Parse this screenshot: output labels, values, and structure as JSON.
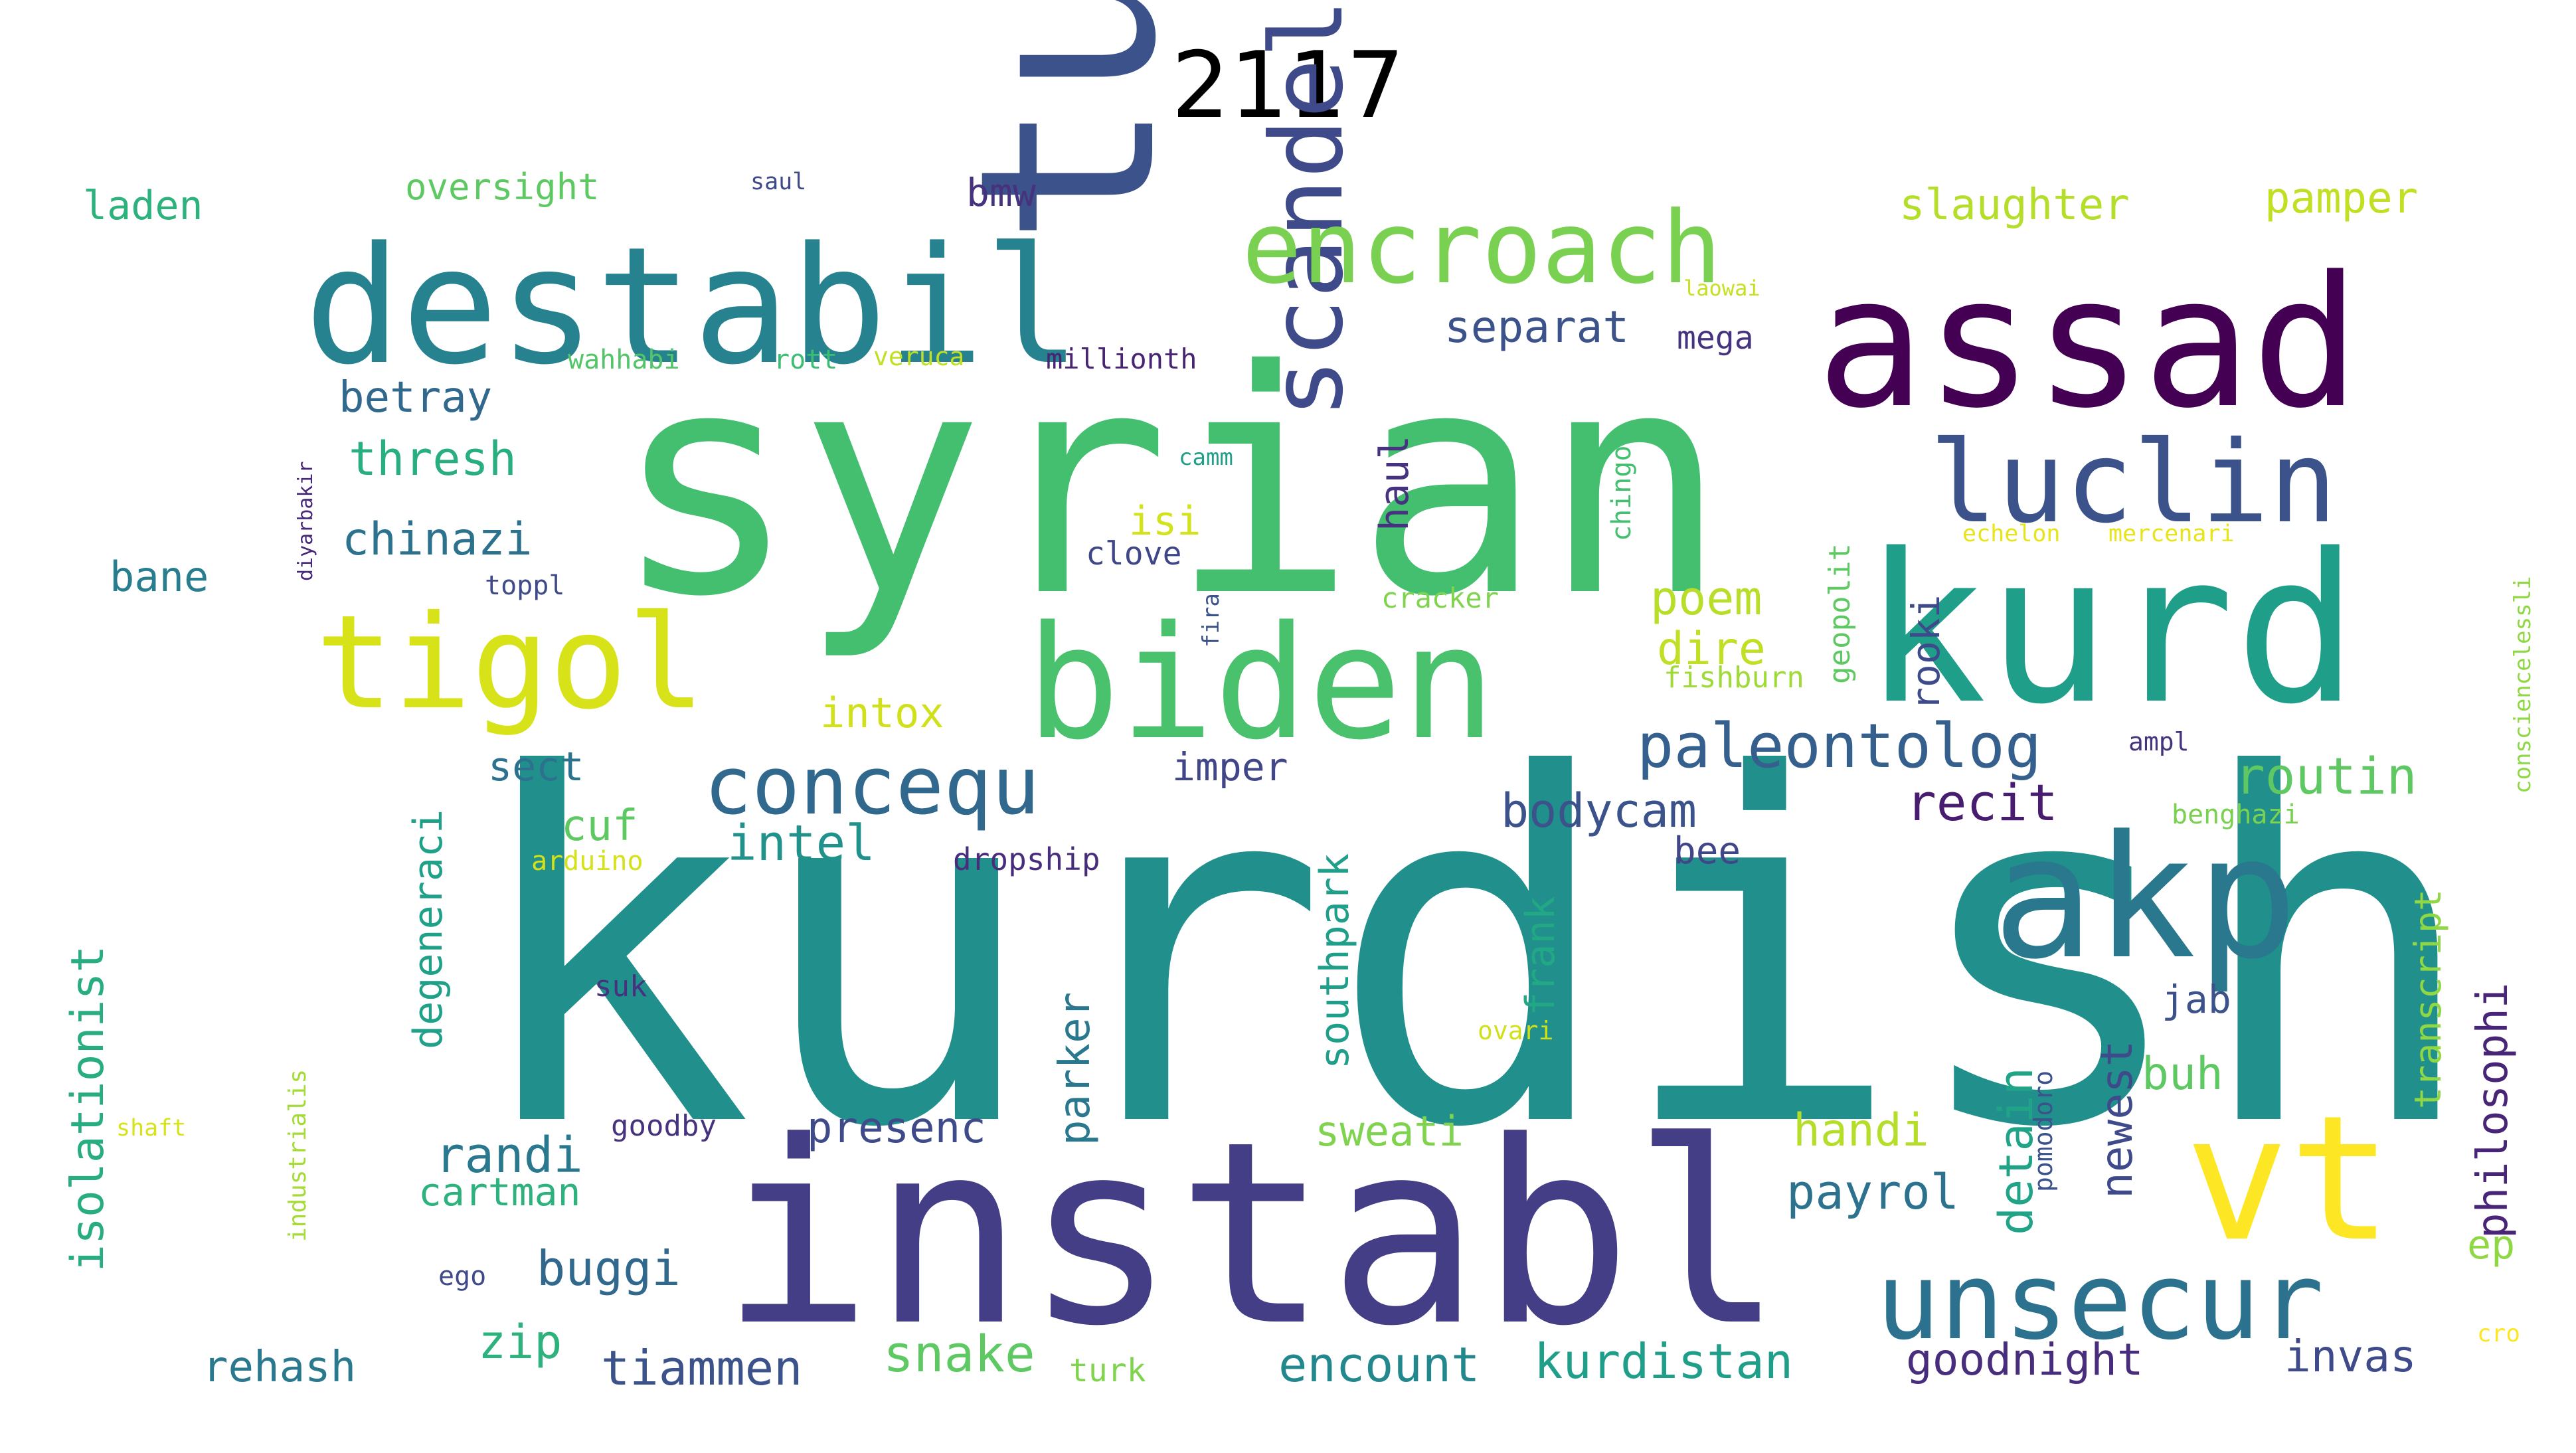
{
  "title": "2117",
  "words": [
    {
      "text": "kurdish",
      "color": "#21908c"
    },
    {
      "text": "syrian",
      "color": "#44bf70"
    },
    {
      "text": "instabl",
      "color": "#433e85"
    },
    {
      "text": "turkish",
      "color": "#3b528b"
    },
    {
      "text": "destabil",
      "color": "#26828e"
    },
    {
      "text": "assad",
      "color": "#440154"
    },
    {
      "text": "kurd",
      "color": "#1f9e89"
    },
    {
      "text": "akp",
      "color": "#2a788e"
    },
    {
      "text": "biden",
      "color": "#4ac16d"
    },
    {
      "text": "vt",
      "color": "#fde725"
    },
    {
      "text": "tigol",
      "color": "#d8e219"
    },
    {
      "text": "scandel",
      "color": "#3e4a89"
    },
    {
      "text": "encroach",
      "color": "#7ad151"
    },
    {
      "text": "luclin",
      "color": "#3b528b"
    },
    {
      "text": "unsecur",
      "color": "#2c728e"
    },
    {
      "text": "concequ",
      "color": "#31688e"
    },
    {
      "text": "paleontolog",
      "color": "#35608d"
    },
    {
      "text": "laden",
      "color": "#2db27d"
    },
    {
      "text": "oversight",
      "color": "#5ec962"
    },
    {
      "text": "saul",
      "color": "#3e4a89"
    },
    {
      "text": "bmw",
      "color": "#46327e"
    },
    {
      "text": "slaughter",
      "color": "#b5de2b"
    },
    {
      "text": "pamper",
      "color": "#c2df23"
    },
    {
      "text": "separat",
      "color": "#3b528b"
    },
    {
      "text": "mega",
      "color": "#46337f"
    },
    {
      "text": "laowai",
      "color": "#c8e020"
    },
    {
      "text": "wahhabi",
      "color": "#52c569"
    },
    {
      "text": "rott",
      "color": "#3dbc74"
    },
    {
      "text": "veruca",
      "color": "#c2df23"
    },
    {
      "text": "millionth",
      "color": "#482475"
    },
    {
      "text": "betray",
      "color": "#31688e"
    },
    {
      "text": "thresh",
      "color": "#29af7f"
    },
    {
      "text": "chinazi",
      "color": "#2c728e"
    },
    {
      "text": "haul",
      "color": "#46327e"
    },
    {
      "text": "chingon",
      "color": "#44bf70"
    },
    {
      "text": "camm",
      "color": "#1f9e89"
    },
    {
      "text": "isi",
      "color": "#d2e21b"
    },
    {
      "text": "clove",
      "color": "#3f4788"
    },
    {
      "text": "echelon",
      "color": "#e7e419"
    },
    {
      "text": "mercenari",
      "color": "#e7e419"
    },
    {
      "text": "consciencelessli",
      "color": "#8fd744"
    },
    {
      "text": "diyarbakir",
      "color": "#482878"
    },
    {
      "text": "bane",
      "color": "#287d8e"
    },
    {
      "text": "toppl",
      "color": "#3e4a89"
    },
    {
      "text": "poem",
      "color": "#b8de29"
    },
    {
      "text": "dire",
      "color": "#c0df25"
    },
    {
      "text": "geopolit",
      "color": "#5ec962"
    },
    {
      "text": "cracker",
      "color": "#7fd34e"
    },
    {
      "text": "fira",
      "color": "#3b528b"
    },
    {
      "text": "fishburn",
      "color": "#a0da39"
    },
    {
      "text": "rooki",
      "color": "#3e4a89"
    },
    {
      "text": "intox",
      "color": "#d0e11c"
    },
    {
      "text": "ampl",
      "color": "#45337d"
    },
    {
      "text": "sect",
      "color": "#2c728e"
    },
    {
      "text": "imper",
      "color": "#404688"
    },
    {
      "text": "routin",
      "color": "#5ec962"
    },
    {
      "text": "recit",
      "color": "#481c6e"
    },
    {
      "text": "benghazi",
      "color": "#7ad151"
    },
    {
      "text": "degeneraci",
      "color": "#1fa088"
    },
    {
      "text": "bodycam",
      "color": "#3b528b"
    },
    {
      "text": "bee",
      "color": "#404688"
    },
    {
      "text": "cuf",
      "color": "#5ec962"
    },
    {
      "text": "intel",
      "color": "#21918c"
    },
    {
      "text": "arduino",
      "color": "#d5e21a"
    },
    {
      "text": "dropship",
      "color": "#472d7b"
    },
    {
      "text": "southpark",
      "color": "#1f9e89"
    },
    {
      "text": "frank",
      "color": "#22a884"
    },
    {
      "text": "transcript",
      "color": "#8fd744"
    },
    {
      "text": "philosophi",
      "color": "#482576"
    },
    {
      "text": "isolationist",
      "color": "#27ad81"
    },
    {
      "text": "suk",
      "color": "#46327e"
    },
    {
      "text": "parker",
      "color": "#2a788e"
    },
    {
      "text": "pomodoro",
      "color": "#3b528b"
    },
    {
      "text": "jab",
      "color": "#3b528b"
    },
    {
      "text": "newest",
      "color": "#3e4a89"
    },
    {
      "text": "detain",
      "color": "#20a386"
    },
    {
      "text": "buh",
      "color": "#5ec962"
    },
    {
      "text": "industrialis",
      "color": "#a5db36"
    },
    {
      "text": "shaft",
      "color": "#d8e219"
    },
    {
      "text": "goodby",
      "color": "#46327e"
    },
    {
      "text": "presenc",
      "color": "#3e4a89"
    },
    {
      "text": "ovari",
      "color": "#d0e11c"
    },
    {
      "text": "sweati",
      "color": "#7fd34e"
    },
    {
      "text": "handi",
      "color": "#b5de2b"
    },
    {
      "text": "randi",
      "color": "#2a788e"
    },
    {
      "text": "cartman",
      "color": "#2db27d"
    },
    {
      "text": "payrol",
      "color": "#2c728e"
    },
    {
      "text": "ego",
      "color": "#3e4a89"
    },
    {
      "text": "buggi",
      "color": "#31688e"
    },
    {
      "text": "ep",
      "color": "#8fd744"
    },
    {
      "text": "cro",
      "color": "#fde725"
    },
    {
      "text": "zip",
      "color": "#2db27d"
    },
    {
      "text": "snake",
      "color": "#5ec962"
    },
    {
      "text": "encount",
      "color": "#23888e"
    },
    {
      "text": "kurdistan",
      "color": "#1f9e89"
    },
    {
      "text": "goodnight",
      "color": "#472d7b"
    },
    {
      "text": "invas",
      "color": "#3e4a89"
    },
    {
      "text": "rehash",
      "color": "#2a788e"
    },
    {
      "text": "tiammen",
      "color": "#3b528b"
    },
    {
      "text": "turk",
      "color": "#7fd34e"
    }
  ]
}
